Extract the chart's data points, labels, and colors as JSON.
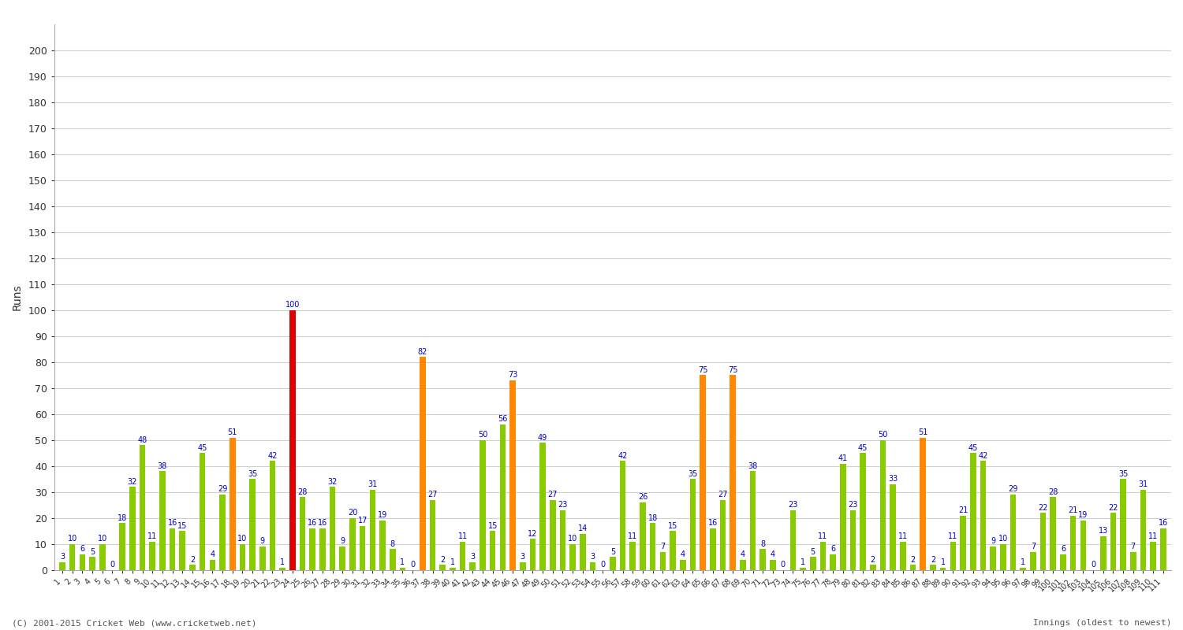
{
  "ylabel": "Runs",
  "xlabel_note": "Innings (oldest to newest)",
  "footer": "(C) 2001-2015 Cricket Web (www.cricketweb.net)",
  "ylim": [
    0,
    210
  ],
  "yticks": [
    0,
    10,
    20,
    30,
    40,
    50,
    60,
    70,
    80,
    90,
    100,
    110,
    120,
    130,
    140,
    150,
    160,
    170,
    180,
    190,
    200
  ],
  "background_color": "#ffffff",
  "grid_color": "#d0d0d0",
  "innings": [
    {
      "inning": 1,
      "runs": 3,
      "not_out": false
    },
    {
      "inning": 2,
      "runs": 10,
      "not_out": false
    },
    {
      "inning": 3,
      "runs": 6,
      "not_out": false
    },
    {
      "inning": 4,
      "runs": 5,
      "not_out": false
    },
    {
      "inning": 5,
      "runs": 10,
      "not_out": false
    },
    {
      "inning": 6,
      "runs": 0,
      "not_out": false
    },
    {
      "inning": 7,
      "runs": 18,
      "not_out": false
    },
    {
      "inning": 8,
      "runs": 32,
      "not_out": false
    },
    {
      "inning": 9,
      "runs": 48,
      "not_out": false
    },
    {
      "inning": 10,
      "runs": 11,
      "not_out": false
    },
    {
      "inning": 11,
      "runs": 38,
      "not_out": false
    },
    {
      "inning": 12,
      "runs": 16,
      "not_out": false
    },
    {
      "inning": 13,
      "runs": 15,
      "not_out": false
    },
    {
      "inning": 14,
      "runs": 2,
      "not_out": false
    },
    {
      "inning": 15,
      "runs": 45,
      "not_out": false
    },
    {
      "inning": 16,
      "runs": 4,
      "not_out": false
    },
    {
      "inning": 17,
      "runs": 29,
      "not_out": false
    },
    {
      "inning": 18,
      "runs": 51,
      "not_out": true
    },
    {
      "inning": 19,
      "runs": 10,
      "not_out": false
    },
    {
      "inning": 20,
      "runs": 35,
      "not_out": false
    },
    {
      "inning": 21,
      "runs": 9,
      "not_out": false
    },
    {
      "inning": 22,
      "runs": 42,
      "not_out": false
    },
    {
      "inning": 23,
      "runs": 1,
      "not_out": false
    },
    {
      "inning": 24,
      "runs": 100,
      "not_out": true
    },
    {
      "inning": 25,
      "runs": 28,
      "not_out": false
    },
    {
      "inning": 26,
      "runs": 16,
      "not_out": false
    },
    {
      "inning": 27,
      "runs": 16,
      "not_out": false
    },
    {
      "inning": 28,
      "runs": 32,
      "not_out": false
    },
    {
      "inning": 29,
      "runs": 9,
      "not_out": false
    },
    {
      "inning": 30,
      "runs": 20,
      "not_out": false
    },
    {
      "inning": 31,
      "runs": 17,
      "not_out": false
    },
    {
      "inning": 32,
      "runs": 31,
      "not_out": false
    },
    {
      "inning": 33,
      "runs": 19,
      "not_out": false
    },
    {
      "inning": 34,
      "runs": 8,
      "not_out": false
    },
    {
      "inning": 35,
      "runs": 1,
      "not_out": false
    },
    {
      "inning": 36,
      "runs": 0,
      "not_out": false
    },
    {
      "inning": 37,
      "runs": 82,
      "not_out": true
    },
    {
      "inning": 38,
      "runs": 27,
      "not_out": false
    },
    {
      "inning": 39,
      "runs": 2,
      "not_out": false
    },
    {
      "inning": 40,
      "runs": 1,
      "not_out": false
    },
    {
      "inning": 41,
      "runs": 11,
      "not_out": false
    },
    {
      "inning": 42,
      "runs": 3,
      "not_out": false
    },
    {
      "inning": 43,
      "runs": 50,
      "not_out": false
    },
    {
      "inning": 44,
      "runs": 15,
      "not_out": false
    },
    {
      "inning": 45,
      "runs": 56,
      "not_out": false
    },
    {
      "inning": 46,
      "runs": 73,
      "not_out": true
    },
    {
      "inning": 47,
      "runs": 3,
      "not_out": false
    },
    {
      "inning": 48,
      "runs": 12,
      "not_out": false
    },
    {
      "inning": 49,
      "runs": 49,
      "not_out": false
    },
    {
      "inning": 50,
      "runs": 27,
      "not_out": false
    },
    {
      "inning": 51,
      "runs": 23,
      "not_out": false
    },
    {
      "inning": 52,
      "runs": 10,
      "not_out": false
    },
    {
      "inning": 53,
      "runs": 14,
      "not_out": false
    },
    {
      "inning": 54,
      "runs": 3,
      "not_out": false
    },
    {
      "inning": 55,
      "runs": 0,
      "not_out": false
    },
    {
      "inning": 56,
      "runs": 5,
      "not_out": false
    },
    {
      "inning": 57,
      "runs": 42,
      "not_out": false
    },
    {
      "inning": 58,
      "runs": 11,
      "not_out": false
    },
    {
      "inning": 59,
      "runs": 26,
      "not_out": false
    },
    {
      "inning": 60,
      "runs": 18,
      "not_out": false
    },
    {
      "inning": 61,
      "runs": 7,
      "not_out": false
    },
    {
      "inning": 62,
      "runs": 15,
      "not_out": false
    },
    {
      "inning": 63,
      "runs": 4,
      "not_out": false
    },
    {
      "inning": 64,
      "runs": 35,
      "not_out": false
    },
    {
      "inning": 65,
      "runs": 75,
      "not_out": true
    },
    {
      "inning": 66,
      "runs": 16,
      "not_out": false
    },
    {
      "inning": 67,
      "runs": 27,
      "not_out": false
    },
    {
      "inning": 68,
      "runs": 75,
      "not_out": true
    },
    {
      "inning": 69,
      "runs": 4,
      "not_out": false
    },
    {
      "inning": 70,
      "runs": 38,
      "not_out": false
    },
    {
      "inning": 71,
      "runs": 8,
      "not_out": false
    },
    {
      "inning": 72,
      "runs": 4,
      "not_out": false
    },
    {
      "inning": 73,
      "runs": 0,
      "not_out": false
    },
    {
      "inning": 74,
      "runs": 23,
      "not_out": false
    },
    {
      "inning": 75,
      "runs": 1,
      "not_out": false
    },
    {
      "inning": 76,
      "runs": 5,
      "not_out": false
    },
    {
      "inning": 77,
      "runs": 11,
      "not_out": false
    },
    {
      "inning": 78,
      "runs": 6,
      "not_out": false
    },
    {
      "inning": 79,
      "runs": 41,
      "not_out": false
    },
    {
      "inning": 80,
      "runs": 23,
      "not_out": false
    },
    {
      "inning": 81,
      "runs": 45,
      "not_out": false
    },
    {
      "inning": 82,
      "runs": 2,
      "not_out": false
    },
    {
      "inning": 83,
      "runs": 50,
      "not_out": false
    },
    {
      "inning": 84,
      "runs": 33,
      "not_out": false
    },
    {
      "inning": 85,
      "runs": 11,
      "not_out": false
    },
    {
      "inning": 86,
      "runs": 2,
      "not_out": false
    },
    {
      "inning": 87,
      "runs": 51,
      "not_out": true
    },
    {
      "inning": 88,
      "runs": 2,
      "not_out": false
    },
    {
      "inning": 89,
      "runs": 1,
      "not_out": false
    },
    {
      "inning": 90,
      "runs": 11,
      "not_out": false
    },
    {
      "inning": 91,
      "runs": 21,
      "not_out": false
    },
    {
      "inning": 92,
      "runs": 45,
      "not_out": false
    },
    {
      "inning": 93,
      "runs": 42,
      "not_out": false
    },
    {
      "inning": 94,
      "runs": 9,
      "not_out": false
    },
    {
      "inning": 95,
      "runs": 10,
      "not_out": false
    },
    {
      "inning": 96,
      "runs": 29,
      "not_out": false
    },
    {
      "inning": 97,
      "runs": 1,
      "not_out": false
    },
    {
      "inning": 98,
      "runs": 7,
      "not_out": false
    },
    {
      "inning": 99,
      "runs": 22,
      "not_out": false
    },
    {
      "inning": 100,
      "runs": 28,
      "not_out": false
    },
    {
      "inning": 101,
      "runs": 6,
      "not_out": false
    },
    {
      "inning": 102,
      "runs": 21,
      "not_out": false
    },
    {
      "inning": 103,
      "runs": 19,
      "not_out": false
    },
    {
      "inning": 104,
      "runs": 0,
      "not_out": false
    },
    {
      "inning": 105,
      "runs": 13,
      "not_out": false
    },
    {
      "inning": 106,
      "runs": 22,
      "not_out": false
    },
    {
      "inning": 107,
      "runs": 35,
      "not_out": false
    },
    {
      "inning": 108,
      "runs": 7,
      "not_out": false
    },
    {
      "inning": 109,
      "runs": 31,
      "not_out": false
    },
    {
      "inning": 110,
      "runs": 11,
      "not_out": false
    },
    {
      "inning": 111,
      "runs": 16,
      "not_out": false
    }
  ],
  "not_out_color": "#ff8800",
  "out_color": "#88cc00",
  "century_color": "#dd0000",
  "label_color": "#0000cc",
  "label_fontsize": 7,
  "bar_width": 0.6
}
